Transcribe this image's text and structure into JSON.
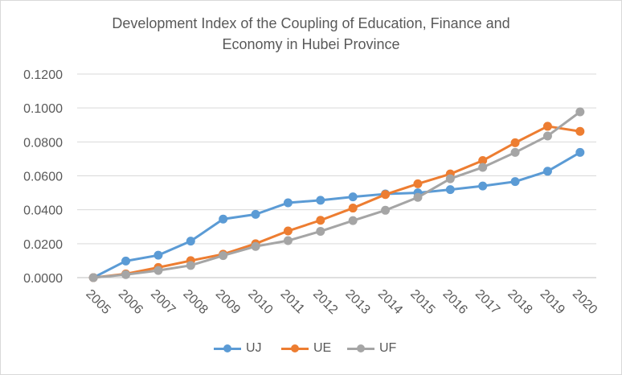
{
  "chart_data": {
    "type": "line",
    "title_lines": [
      "Development  Index of the Coupling  of Education, Finance and",
      "Economy  in Hubei Province"
    ],
    "categories": [
      "2005",
      "2006",
      "2007",
      "2008",
      "2009",
      "2010",
      "2011",
      "2012",
      "2013",
      "2014",
      "2015",
      "2016",
      "2017",
      "2018",
      "2019",
      "2020"
    ],
    "ylim": [
      0,
      0.12
    ],
    "yticks": [
      "0.0000",
      "0.0200",
      "0.0400",
      "0.0600",
      "0.0800",
      "0.1000",
      "0.1200"
    ],
    "grid": true,
    "legend_position": "bottom",
    "series": [
      {
        "name": "UJ",
        "color": "#5b9bd5",
        "values": [
          0.0,
          0.0098,
          0.0132,
          0.0215,
          0.0345,
          0.0373,
          0.0441,
          0.0456,
          0.0476,
          0.0493,
          0.05,
          0.0519,
          0.054,
          0.0566,
          0.0627,
          0.0738
        ]
      },
      {
        "name": "UE",
        "color": "#ed7d31",
        "values": [
          0.0,
          0.0022,
          0.006,
          0.01,
          0.0138,
          0.02,
          0.0275,
          0.0338,
          0.041,
          0.049,
          0.0553,
          0.0611,
          0.069,
          0.0795,
          0.0892,
          0.0862
        ]
      },
      {
        "name": "UF",
        "color": "#a5a5a5",
        "values": [
          0.0,
          0.0018,
          0.0042,
          0.0072,
          0.013,
          0.0184,
          0.0218,
          0.0273,
          0.0336,
          0.0397,
          0.0473,
          0.0583,
          0.065,
          0.0738,
          0.0835,
          0.0977
        ]
      }
    ]
  }
}
